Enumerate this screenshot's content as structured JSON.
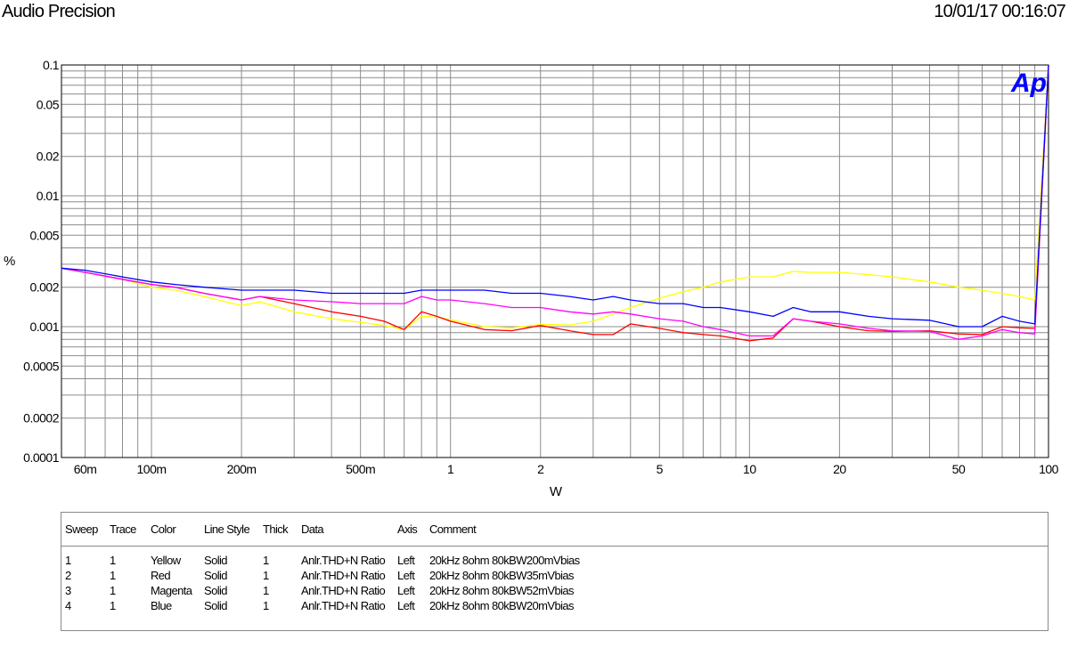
{
  "header": {
    "app_title": "Audio Precision",
    "timestamp": "10/01/17 00:16:07"
  },
  "logo_text": "Ap",
  "chart_data": {
    "type": "line",
    "x_scale": "log",
    "y_scale": "log",
    "xlim": [
      0.05,
      100
    ],
    "ylim": [
      0.0001,
      0.1
    ],
    "xlabel": "W",
    "ylabel": "%",
    "grid": true,
    "x_ticks": [
      {
        "v": 0.06,
        "label": "60m"
      },
      {
        "v": 0.1,
        "label": "100m"
      },
      {
        "v": 0.2,
        "label": "200m"
      },
      {
        "v": 0.5,
        "label": "500m"
      },
      {
        "v": 1,
        "label": "1"
      },
      {
        "v": 2,
        "label": "2"
      },
      {
        "v": 5,
        "label": "5"
      },
      {
        "v": 10,
        "label": "10"
      },
      {
        "v": 20,
        "label": "20"
      },
      {
        "v": 50,
        "label": "50"
      },
      {
        "v": 100,
        "label": "100"
      }
    ],
    "y_ticks": [
      {
        "v": 0.1,
        "label": "0.1"
      },
      {
        "v": 0.05,
        "label": "0.05"
      },
      {
        "v": 0.02,
        "label": "0.02"
      },
      {
        "v": 0.01,
        "label": "0.01"
      },
      {
        "v": 0.005,
        "label": "0.005"
      },
      {
        "v": 0.002,
        "label": "0.002"
      },
      {
        "v": 0.001,
        "label": "0.001"
      },
      {
        "v": 0.0005,
        "label": "0.0005"
      },
      {
        "v": 0.0002,
        "label": "0.0002"
      },
      {
        "v": 0.0001,
        "label": "0.0001"
      }
    ],
    "series": [
      {
        "name": "Yellow",
        "color": "#ffff00",
        "points": [
          [
            0.05,
            0.0028
          ],
          [
            0.06,
            0.0026
          ],
          [
            0.08,
            0.0023
          ],
          [
            0.1,
            0.002
          ],
          [
            0.12,
            0.0019
          ],
          [
            0.15,
            0.0017
          ],
          [
            0.2,
            0.00145
          ],
          [
            0.23,
            0.00155
          ],
          [
            0.3,
            0.0013
          ],
          [
            0.4,
            0.00115
          ],
          [
            0.5,
            0.00108
          ],
          [
            0.6,
            0.00102
          ],
          [
            0.7,
            0.00095
          ],
          [
            0.8,
            0.0012
          ],
          [
            0.9,
            0.00118
          ],
          [
            1.0,
            0.00113
          ],
          [
            1.3,
            0.001
          ],
          [
            1.6,
            0.00098
          ],
          [
            2.0,
            0.00104
          ],
          [
            2.5,
            0.00103
          ],
          [
            3.0,
            0.0011
          ],
          [
            3.5,
            0.00125
          ],
          [
            4.0,
            0.0014
          ],
          [
            5.0,
            0.00165
          ],
          [
            6.0,
            0.00185
          ],
          [
            7.0,
            0.002
          ],
          [
            8.0,
            0.0022
          ],
          [
            10.0,
            0.0024
          ],
          [
            12.0,
            0.0024
          ],
          [
            14.0,
            0.00265
          ],
          [
            16.0,
            0.0026
          ],
          [
            20.0,
            0.0026
          ],
          [
            25.0,
            0.0025
          ],
          [
            30.0,
            0.0024
          ],
          [
            40.0,
            0.0022
          ],
          [
            50.0,
            0.002
          ],
          [
            60.0,
            0.0019
          ],
          [
            80.0,
            0.0017
          ],
          [
            90.0,
            0.0016
          ],
          [
            100.0,
            0.1
          ]
        ]
      },
      {
        "name": "Red",
        "color": "#ff0000",
        "points": [
          [
            0.05,
            0.0028
          ],
          [
            0.06,
            0.0026
          ],
          [
            0.08,
            0.0023
          ],
          [
            0.1,
            0.0021
          ],
          [
            0.12,
            0.002
          ],
          [
            0.15,
            0.0018
          ],
          [
            0.2,
            0.0016
          ],
          [
            0.23,
            0.0017
          ],
          [
            0.3,
            0.0015
          ],
          [
            0.4,
            0.0013
          ],
          [
            0.5,
            0.0012
          ],
          [
            0.6,
            0.0011
          ],
          [
            0.7,
            0.00095
          ],
          [
            0.8,
            0.0013
          ],
          [
            0.9,
            0.0012
          ],
          [
            1.0,
            0.0011
          ],
          [
            1.3,
            0.00095
          ],
          [
            1.6,
            0.00093
          ],
          [
            2.0,
            0.00102
          ],
          [
            2.5,
            0.00093
          ],
          [
            3.0,
            0.00087
          ],
          [
            3.5,
            0.00087
          ],
          [
            4.0,
            0.00105
          ],
          [
            5.0,
            0.00097
          ],
          [
            6.0,
            0.0009
          ],
          [
            7.0,
            0.00087
          ],
          [
            8.0,
            0.00085
          ],
          [
            10.0,
            0.00078
          ],
          [
            12.0,
            0.00082
          ],
          [
            14.0,
            0.00115
          ],
          [
            16.0,
            0.0011
          ],
          [
            20.0,
            0.001
          ],
          [
            25.0,
            0.00093
          ],
          [
            30.0,
            0.00092
          ],
          [
            40.0,
            0.00093
          ],
          [
            50.0,
            0.00088
          ],
          [
            60.0,
            0.00087
          ],
          [
            70.0,
            0.001
          ],
          [
            80.0,
            0.00098
          ],
          [
            90.0,
            0.00097
          ],
          [
            100.0,
            0.1
          ]
        ]
      },
      {
        "name": "Magenta",
        "color": "#ff00ff",
        "points": [
          [
            0.05,
            0.0028
          ],
          [
            0.06,
            0.0026
          ],
          [
            0.08,
            0.0023
          ],
          [
            0.1,
            0.0021
          ],
          [
            0.12,
            0.002
          ],
          [
            0.15,
            0.0018
          ],
          [
            0.2,
            0.0016
          ],
          [
            0.23,
            0.0017
          ],
          [
            0.3,
            0.0016
          ],
          [
            0.4,
            0.00155
          ],
          [
            0.5,
            0.0015
          ],
          [
            0.6,
            0.0015
          ],
          [
            0.7,
            0.0015
          ],
          [
            0.8,
            0.0017
          ],
          [
            0.9,
            0.0016
          ],
          [
            1.0,
            0.0016
          ],
          [
            1.3,
            0.0015
          ],
          [
            1.6,
            0.0014
          ],
          [
            2.0,
            0.0014
          ],
          [
            2.5,
            0.0013
          ],
          [
            3.0,
            0.00125
          ],
          [
            3.5,
            0.0013
          ],
          [
            4.0,
            0.00125
          ],
          [
            5.0,
            0.00115
          ],
          [
            6.0,
            0.0011
          ],
          [
            7.0,
            0.001
          ],
          [
            8.0,
            0.00095
          ],
          [
            10.0,
            0.00085
          ],
          [
            12.0,
            0.00085
          ],
          [
            14.0,
            0.00115
          ],
          [
            16.0,
            0.0011
          ],
          [
            20.0,
            0.00105
          ],
          [
            25.0,
            0.00097
          ],
          [
            30.0,
            0.00093
          ],
          [
            40.0,
            0.00092
          ],
          [
            50.0,
            0.0008
          ],
          [
            60.0,
            0.00085
          ],
          [
            70.0,
            0.00095
          ],
          [
            80.0,
            0.0009
          ],
          [
            90.0,
            0.00088
          ],
          [
            100.0,
            0.1
          ]
        ]
      },
      {
        "name": "Blue",
        "color": "#0000ff",
        "points": [
          [
            0.05,
            0.0028
          ],
          [
            0.06,
            0.0027
          ],
          [
            0.08,
            0.0024
          ],
          [
            0.1,
            0.0022
          ],
          [
            0.12,
            0.0021
          ],
          [
            0.15,
            0.002
          ],
          [
            0.2,
            0.0019
          ],
          [
            0.23,
            0.0019
          ],
          [
            0.3,
            0.0019
          ],
          [
            0.4,
            0.0018
          ],
          [
            0.5,
            0.0018
          ],
          [
            0.6,
            0.0018
          ],
          [
            0.7,
            0.0018
          ],
          [
            0.8,
            0.0019
          ],
          [
            0.9,
            0.0019
          ],
          [
            1.0,
            0.0019
          ],
          [
            1.3,
            0.0019
          ],
          [
            1.6,
            0.0018
          ],
          [
            2.0,
            0.0018
          ],
          [
            2.5,
            0.0017
          ],
          [
            3.0,
            0.0016
          ],
          [
            3.5,
            0.0017
          ],
          [
            4.0,
            0.0016
          ],
          [
            5.0,
            0.0015
          ],
          [
            6.0,
            0.0015
          ],
          [
            7.0,
            0.0014
          ],
          [
            8.0,
            0.0014
          ],
          [
            10.0,
            0.0013
          ],
          [
            12.0,
            0.0012
          ],
          [
            14.0,
            0.0014
          ],
          [
            16.0,
            0.0013
          ],
          [
            20.0,
            0.0013
          ],
          [
            25.0,
            0.0012
          ],
          [
            30.0,
            0.00115
          ],
          [
            40.0,
            0.00112
          ],
          [
            50.0,
            0.001
          ],
          [
            60.0,
            0.001
          ],
          [
            70.0,
            0.0012
          ],
          [
            80.0,
            0.0011
          ],
          [
            90.0,
            0.00105
          ],
          [
            100.0,
            0.1
          ]
        ]
      }
    ]
  },
  "legend": {
    "headers": {
      "sweep": "Sweep",
      "trace": "Trace",
      "color": "Color",
      "linestyle": "Line Style",
      "thick": "Thick",
      "data": "Data",
      "axis": "Axis",
      "comment": "Comment"
    },
    "rows": [
      {
        "sweep": "1",
        "trace": "1",
        "color": "Yellow",
        "linestyle": "Solid",
        "thick": "1",
        "data": "Anlr.THD+N Ratio",
        "axis": "Left",
        "comment": "20kHz 8ohm 80kBW200mVbias"
      },
      {
        "sweep": "2",
        "trace": "1",
        "color": "Red",
        "linestyle": "Solid",
        "thick": "1",
        "data": "Anlr.THD+N Ratio",
        "axis": "Left",
        "comment": "20kHz 8ohm 80kBW35mVbias"
      },
      {
        "sweep": "3",
        "trace": "1",
        "color": "Magenta",
        "linestyle": "Solid",
        "thick": "1",
        "data": "Anlr.THD+N Ratio",
        "axis": "Left",
        "comment": "20kHz 8ohm 80kBW52mVbias"
      },
      {
        "sweep": "4",
        "trace": "1",
        "color": "Blue",
        "linestyle": "Solid",
        "thick": "1",
        "data": "Anlr.THD+N Ratio",
        "axis": "Left",
        "comment": "20kHz 8ohm 80kBW20mVbias"
      }
    ]
  }
}
